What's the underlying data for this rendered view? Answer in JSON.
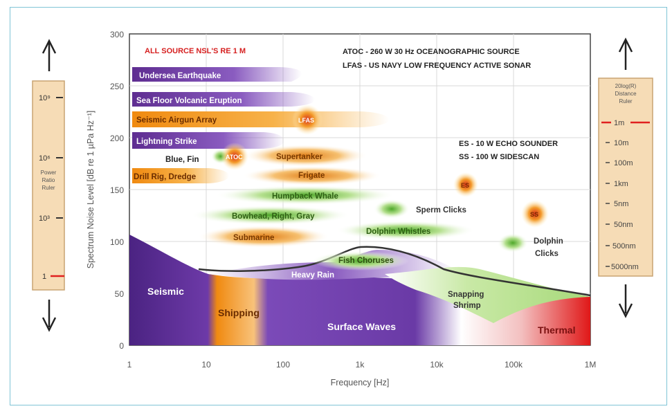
{
  "axes": {
    "ylabel": "Spectrum Noise Level [dB re 1 µPa Hz⁻¹]",
    "xlabel": "Frequency [Hz]",
    "yticks": [
      "300",
      "250",
      "200",
      "150",
      "100",
      "50",
      "0"
    ],
    "xticks": [
      "1",
      "10",
      "100",
      "1k",
      "10k",
      "100k",
      "1M"
    ],
    "ylim": [
      0,
      300
    ],
    "xscale": "log",
    "xlim": [
      1,
      1000000
    ]
  },
  "header": {
    "note_red": "ALL SOURCE NSL'S RE 1 M",
    "atoc_line": "ATOC - 260 W 30 Hz OCEANOGRAPHIC SOURCE",
    "lfas_line": "LFAS - US NAVY LOW FREQUENCY ACTIVE SONAR",
    "es_line": "ES - 10 W ECHO SOUNDER",
    "ss_line": "SS - 100 W SIDESCAN"
  },
  "sources": {
    "undersea_earthquake": "Undersea Earthquake",
    "volcanic": "Sea Floor Volcanic Eruption",
    "airgun": "Seismic Airgun Array",
    "lightning": "Lightning Strike",
    "blue_fin": "Blue, Fin",
    "drill": "Drill Rig, Dredge",
    "supertanker": "Supertanker",
    "frigate": "Frigate",
    "humpback": "Humpback Whale",
    "bowhead": "Bowhead, Right, Gray",
    "submarine": "Submarine",
    "sperm": "Sperm Clicks",
    "dolphin_whistles": "Dolphin Whistles",
    "dolphin_clicks_1": "Dolphin",
    "dolphin_clicks_2": "Clicks",
    "fish": "Fish Choruses",
    "lfas": "LFAS",
    "atoc": "ATOC",
    "es": "ES",
    "ss": "SS"
  },
  "bands": {
    "seismic": "Seismic",
    "shipping": "Shipping",
    "surface_waves": "Surface Waves",
    "thermal": "Thermal",
    "heavy_rain": "Heavy Rain",
    "snapping_1": "Snapping",
    "snapping_2": "Shrimp"
  },
  "left_ruler": {
    "ticks": [
      "10⁹",
      "10⁶",
      "10³",
      "1"
    ],
    "label_1": "Power",
    "label_2": "Ratio",
    "label_3": "Ruler"
  },
  "right_ruler": {
    "title_1": "20log(R)",
    "title_2": "Distance",
    "title_3": "Ruler",
    "ticks": [
      "1m",
      "10m",
      "100m",
      "1km",
      "5nm",
      "50nm",
      "500nm",
      "5000nm"
    ]
  },
  "colors": {
    "purple": "#6a3d9a",
    "orange": "#f39a1e",
    "green": "#8fcf5a",
    "red": "#e02020",
    "ruler_bg": "#f6dcb6"
  }
}
